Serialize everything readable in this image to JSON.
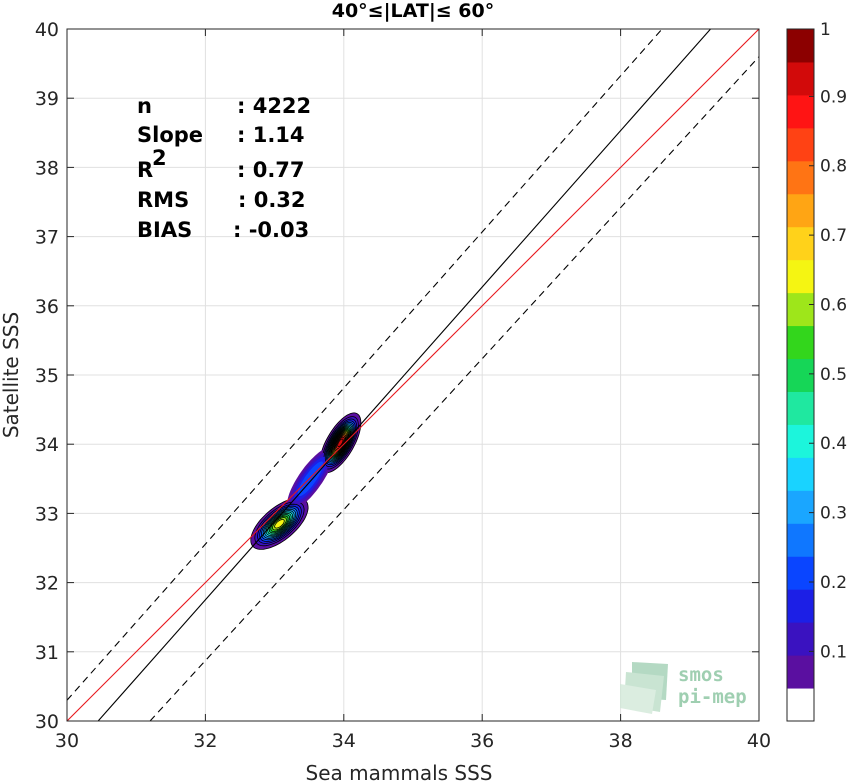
{
  "chart_data": {
    "type": "contour",
    "title": "40°≤|LAT|≤ 60°",
    "xlabel": "Sea mammals SSS",
    "ylabel": "Satellite SSS",
    "xlim": [
      30,
      40
    ],
    "ylim": [
      30,
      40
    ],
    "xticks": [
      "30",
      "32",
      "34",
      "36",
      "38",
      "40"
    ],
    "yticks": [
      "30",
      "31",
      "32",
      "33",
      "34",
      "35",
      "36",
      "37",
      "38",
      "39",
      "40"
    ],
    "grid": true,
    "stats": [
      {
        "label": "n",
        "value": ": 4222"
      },
      {
        "label": "Slope",
        "value": ": 1.14"
      },
      {
        "label": "R",
        "sup": "2",
        "value": ": 0.77"
      },
      {
        "label": "RMS",
        "value": ": 0.32"
      },
      {
        "label": "BIAS",
        "value": ": -0.03"
      }
    ],
    "reference_lines": [
      {
        "kind": "identity",
        "color": "#000000",
        "style": "solid",
        "x": [
          30.45,
          39.3
        ],
        "y": [
          30,
          40
        ]
      },
      {
        "kind": "regression",
        "color": "#e8171c",
        "style": "solid",
        "x": [
          30,
          40
        ],
        "y": [
          30,
          40
        ]
      },
      {
        "kind": "upper-bound",
        "color": "#000000",
        "style": "dashed",
        "x": [
          30,
          38.6
        ],
        "y": [
          30.3,
          40
        ]
      },
      {
        "kind": "lower-bound",
        "color": "#000000",
        "style": "dashed",
        "x": [
          31.2,
          40
        ],
        "y": [
          30,
          39.6
        ]
      }
    ],
    "peaks": [
      {
        "x": 33.95,
        "y": 34.05,
        "density": 1.0
      },
      {
        "x": 33.05,
        "y": 32.85,
        "density": 0.7
      }
    ],
    "colorbar": {
      "ticks": [
        "0.1",
        "0.2",
        "0.3",
        "0.4",
        "0.5",
        "0.6",
        "0.7",
        "0.8",
        "0.9",
        "1"
      ],
      "levels": [
        "#ffffff",
        "#5a0fa0",
        "#3a12c0",
        "#1c1fe6",
        "#0a45ff",
        "#0f77ff",
        "#1aa6ff",
        "#19d3ff",
        "#1cf5dc",
        "#1fe8a0",
        "#16d657",
        "#33d61c",
        "#9ee61a",
        "#f5f512",
        "#ffd21a",
        "#ffa514",
        "#ff7414",
        "#ff4214",
        "#ff1414",
        "#d20a0a",
        "#8c0000"
      ]
    }
  },
  "logo": {
    "line1": "smos",
    "line2": "pi-mep"
  }
}
